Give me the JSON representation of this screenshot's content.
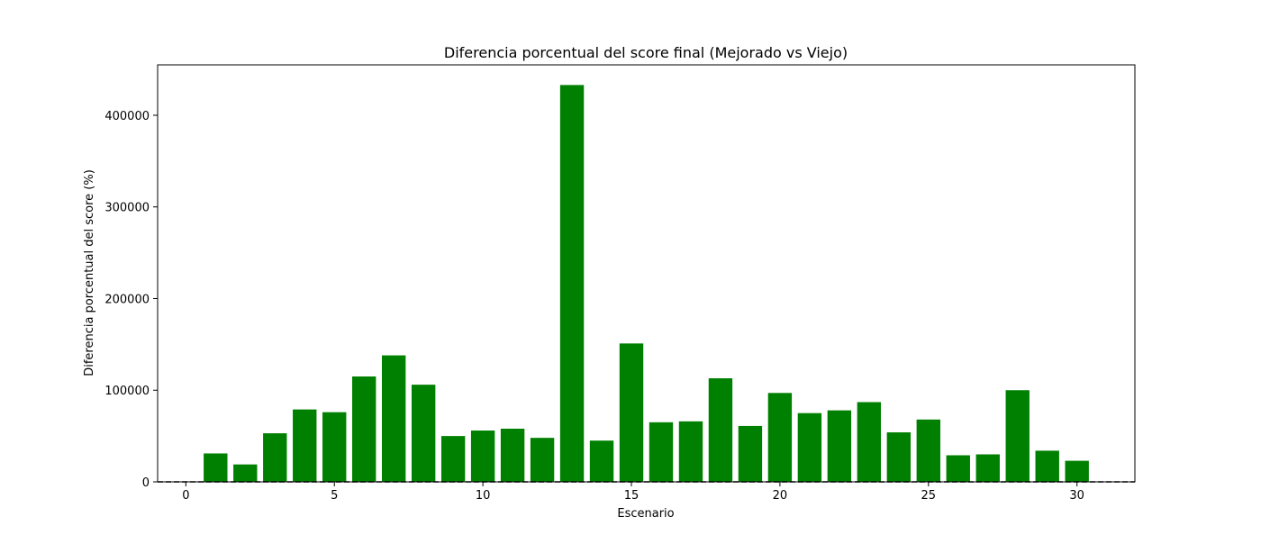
{
  "chart_data": {
    "type": "bar",
    "title": "Diferencia porcentual del score final (Mejorado vs Viejo)",
    "xlabel": "Escenario",
    "ylabel": "Diferencia porcentual del score (%)",
    "x": [
      1,
      2,
      3,
      4,
      5,
      6,
      7,
      8,
      9,
      10,
      11,
      12,
      13,
      14,
      15,
      16,
      17,
      18,
      19,
      20,
      21,
      22,
      23,
      24,
      25,
      26,
      27,
      28,
      29,
      30
    ],
    "values": [
      31000,
      19000,
      53000,
      79000,
      76000,
      115000,
      138000,
      106000,
      50000,
      56000,
      58000,
      48000,
      433000,
      45000,
      151000,
      65000,
      66000,
      113000,
      61000,
      97000,
      75000,
      78000,
      87000,
      54000,
      68000,
      29000,
      30000,
      100000,
      34000,
      23000
    ],
    "xlim": [
      -0.95,
      31.95
    ],
    "ylim": [
      0,
      455000
    ],
    "xticks": [
      0,
      5,
      10,
      15,
      20,
      25,
      30
    ],
    "yticks": [
      0,
      100000,
      200000,
      300000,
      400000
    ],
    "bar_color": "#008000",
    "reference_line": {
      "y": 0,
      "style": "dashed",
      "color": "#000000"
    },
    "grid": false,
    "legend": "none"
  }
}
